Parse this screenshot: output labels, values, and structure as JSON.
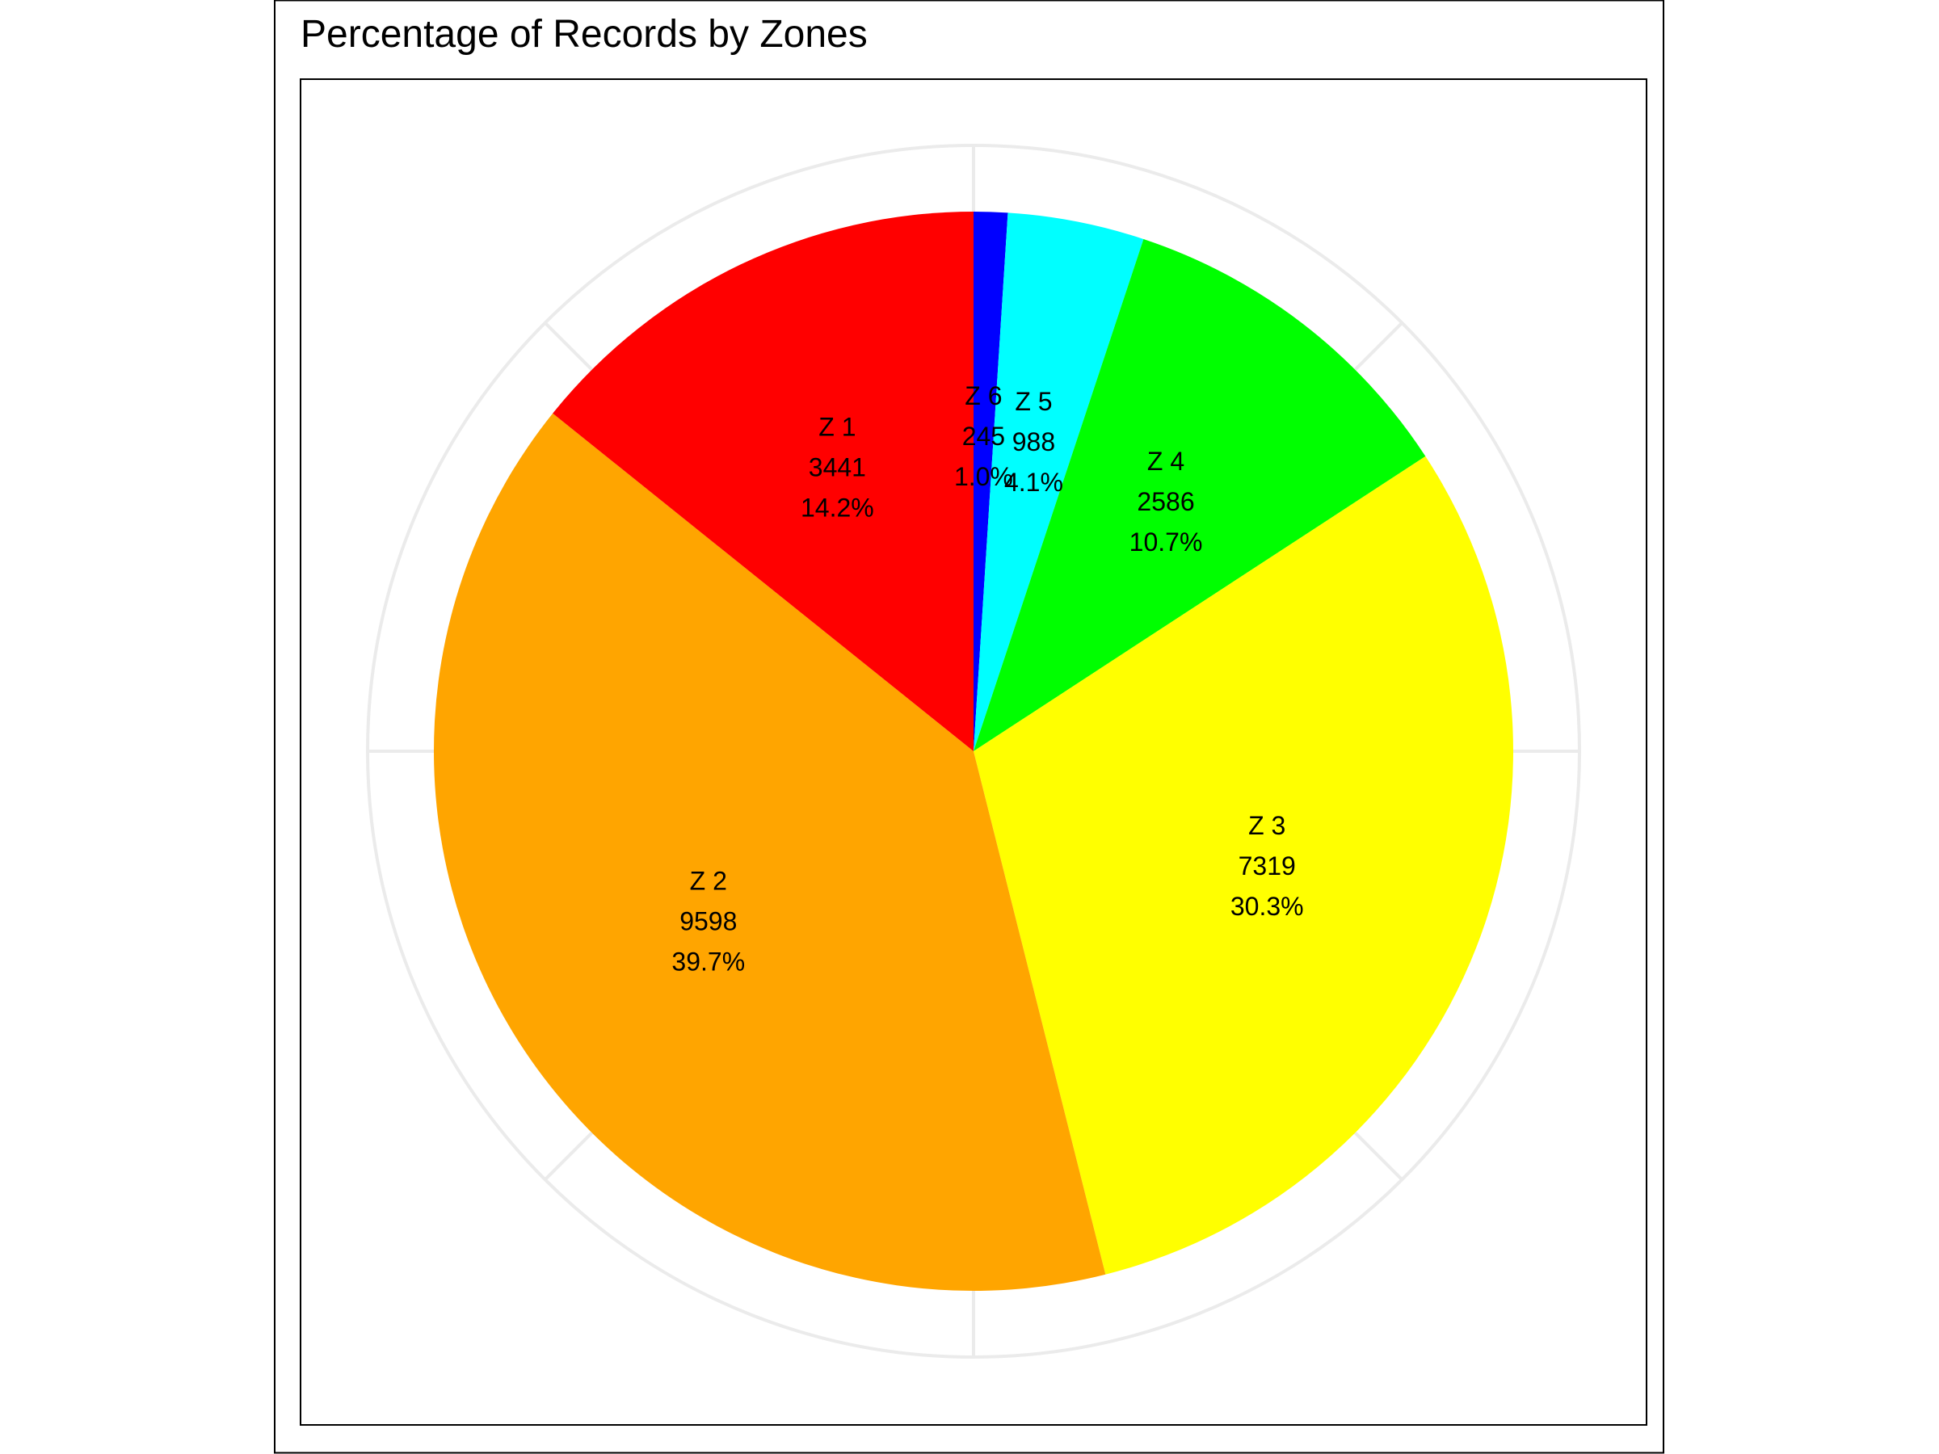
{
  "chart_data": {
    "type": "pie",
    "title": "Percentage of Records by Zones",
    "start": "12 o'clock",
    "direction": "clockwise",
    "grid": true,
    "slices": [
      {
        "label": "Z 6",
        "value": 245,
        "percent": "1.0%",
        "color": "#0000ff"
      },
      {
        "label": "Z 5",
        "value": 988,
        "percent": "4.1%",
        "color": "#00ffff"
      },
      {
        "label": "Z 4",
        "value": 2586,
        "percent": "10.7%",
        "color": "#00ff00"
      },
      {
        "label": "Z 3",
        "value": 7319,
        "percent": "30.3%",
        "color": "#ffff00"
      },
      {
        "label": "Z 2",
        "value": 9598,
        "percent": "39.7%",
        "color": "#ffa500"
      },
      {
        "label": "Z 1",
        "value": 3441,
        "percent": "14.2%",
        "color": "#ff0000"
      }
    ]
  },
  "colors": {
    "grid": "#ebebeb",
    "frame": "#000000",
    "background": "#ffffff"
  }
}
